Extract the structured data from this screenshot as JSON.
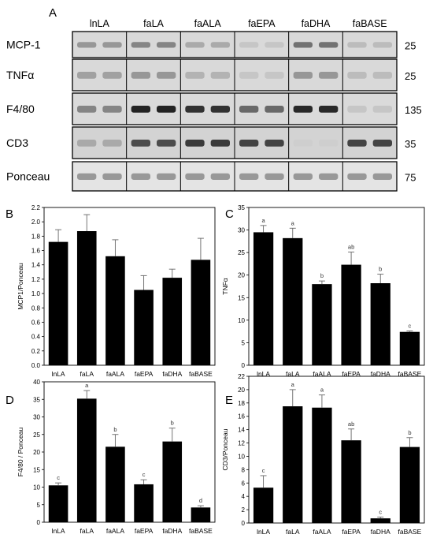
{
  "figure_label": "A",
  "blot": {
    "groups": [
      "lnLA",
      "faLA",
      "faALA",
      "faEPA",
      "faDHA",
      "faBASE"
    ],
    "rows": [
      {
        "label": "MCP-1",
        "mw": "25",
        "tone": "light"
      },
      {
        "label": "TNFα",
        "mw": "25",
        "tone": "light"
      },
      {
        "label": "F4/80",
        "mw": "135",
        "tone": "dark"
      },
      {
        "label": "CD3",
        "mw": "35",
        "tone": "mid"
      },
      {
        "label": "Ponceau",
        "mw": "75",
        "tone": "pale"
      }
    ]
  },
  "chart_data": [
    {
      "panel": "B",
      "type": "bar",
      "categories": [
        "lnLA",
        "faLA",
        "faALA",
        "faEPA",
        "faDHA",
        "faBASE"
      ],
      "values": [
        1.72,
        1.87,
        1.52,
        1.05,
        1.22,
        1.47
      ],
      "errors": [
        0.17,
        0.23,
        0.23,
        0.2,
        0.12,
        0.3
      ],
      "letters": [
        "",
        "",
        "",
        "",
        "",
        ""
      ],
      "ylabel": "MCP1/Ponceau",
      "ylim": [
        0,
        2.2
      ],
      "yticks": [
        "0.0",
        "0.2",
        "0.4",
        "0.6",
        "0.8",
        "1.0",
        "1.2",
        "1.4",
        "1.6",
        "1.8",
        "2.0",
        "2.2"
      ]
    },
    {
      "panel": "C",
      "type": "bar",
      "categories": [
        "lnLA",
        "faLA",
        "faALA",
        "faEPA",
        "faDHA",
        "faBASE"
      ],
      "values": [
        29.5,
        28.2,
        18,
        22.3,
        18.2,
        7.4
      ],
      "errors": [
        1.5,
        2.2,
        0.7,
        2.8,
        2,
        0.2
      ],
      "letters": [
        "a",
        "a",
        "b",
        "ab",
        "b",
        "c"
      ],
      "ylabel": "TNFα",
      "ylim": [
        0,
        35
      ],
      "yticks": [
        "0",
        "5",
        "10",
        "15",
        "20",
        "25",
        "30",
        "35"
      ]
    },
    {
      "panel": "D",
      "type": "bar",
      "categories": [
        "lnLA",
        "faLA",
        "faALA",
        "faEPA",
        "faDHA",
        "faBASE"
      ],
      "values": [
        10.5,
        35.2,
        21.5,
        10.8,
        23,
        4.2
      ],
      "errors": [
        0.7,
        2.3,
        3.5,
        1.3,
        3.8,
        0.5
      ],
      "letters": [
        "c",
        "a",
        "b",
        "c",
        "b",
        "d"
      ],
      "ylabel": "F4/80 / Ponceau",
      "ylim": [
        0,
        40
      ],
      "yticks": [
        "0",
        "5",
        "10",
        "15",
        "20",
        "25",
        "30",
        "35",
        "40"
      ]
    },
    {
      "panel": "E",
      "type": "bar",
      "categories": [
        "lnLA",
        "faLA",
        "faALA",
        "faEPA",
        "faDHA",
        "faBASE"
      ],
      "values": [
        5.3,
        17.5,
        17.3,
        12.4,
        0.7,
        11.4
      ],
      "errors": [
        1.8,
        2.5,
        1.9,
        1.7,
        0.2,
        1.4
      ],
      "letters": [
        "c",
        "a",
        "a",
        "ab",
        "c",
        "b"
      ],
      "ylabel": "CD3/Ponceau",
      "ylim": [
        0,
        22
      ],
      "yticks": [
        "0",
        "2",
        "4",
        "6",
        "8",
        "10",
        "12",
        "14",
        "16",
        "18",
        "20",
        "22"
      ]
    }
  ]
}
